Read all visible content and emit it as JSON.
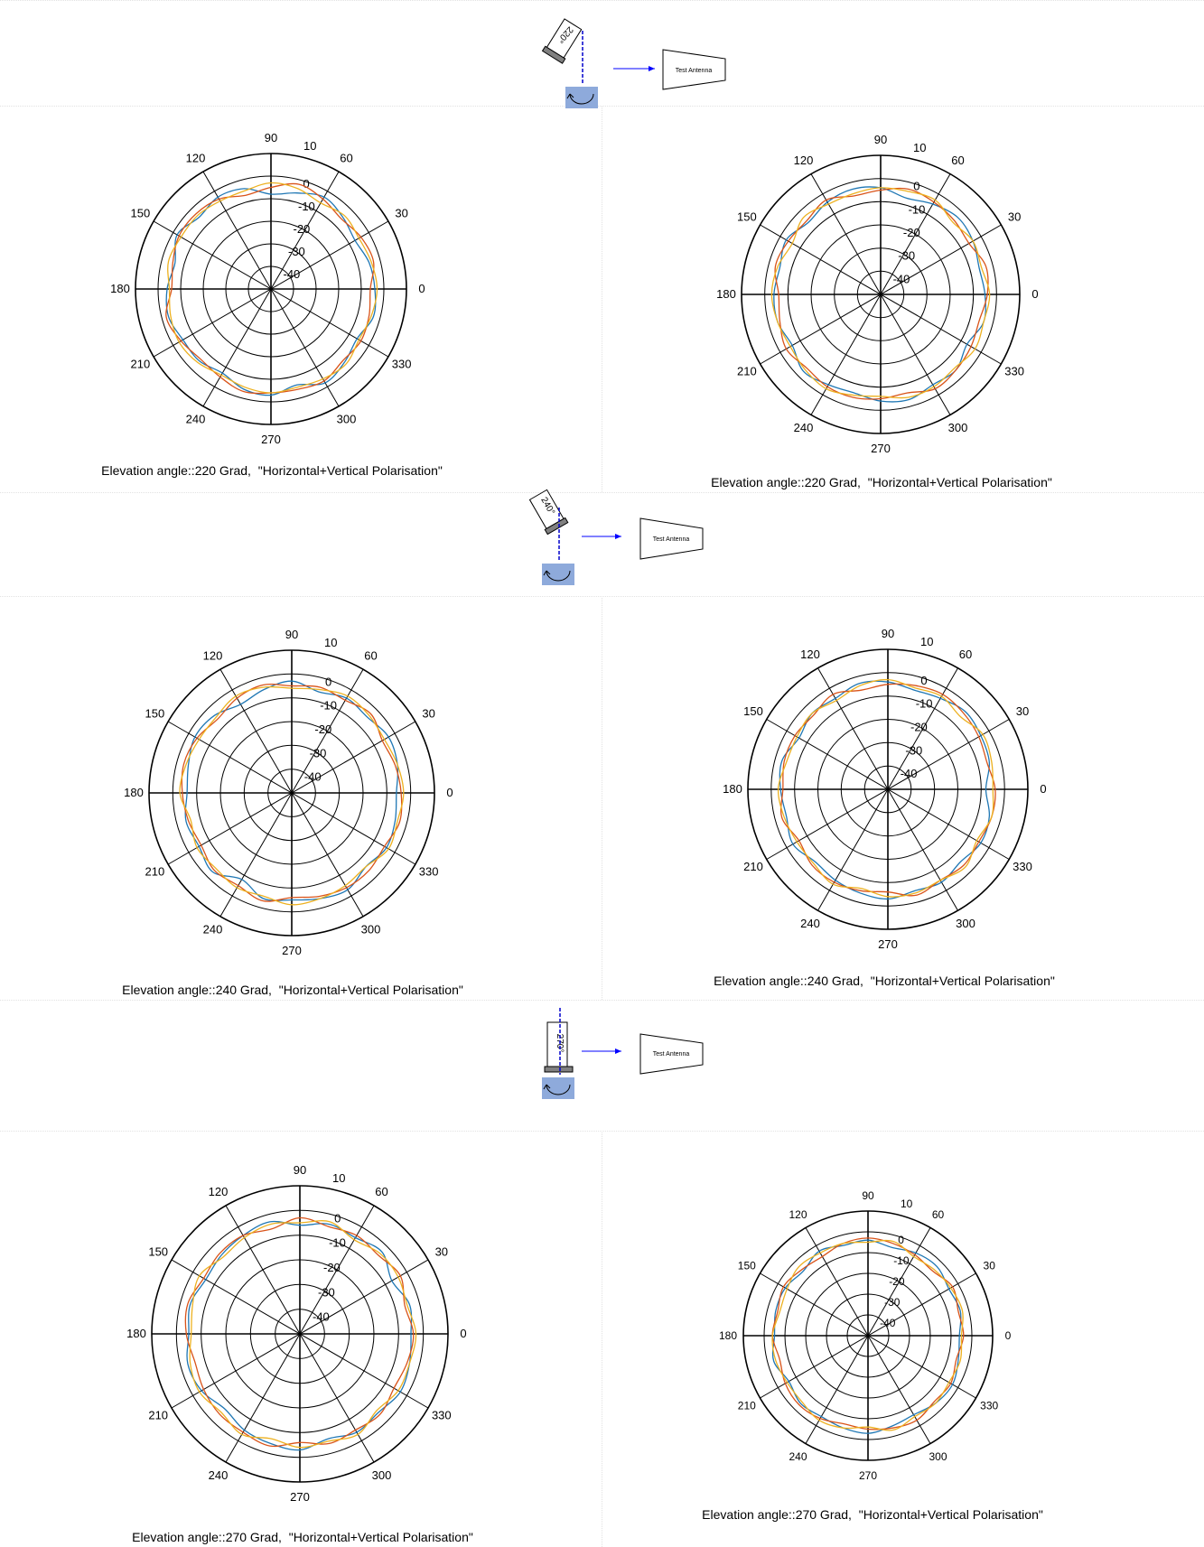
{
  "setups": [
    {
      "angle_label": "220°",
      "antenna_label": "Test Antenna"
    },
    {
      "angle_label": "240°",
      "antenna_label": "Test Antenna"
    },
    {
      "angle_label": "270°",
      "antenna_label": "Test Antenna"
    }
  ],
  "colors": {
    "series": [
      "#1f77b4",
      "#d95319",
      "#edb120"
    ]
  },
  "chart_data": [
    {
      "type": "polar",
      "caption": "Elevation angle::220 Grad,  \"Horizontal+Vertical Polarisation\"",
      "angle_ticks": [
        "0",
        "30",
        "60",
        "90",
        "120",
        "150",
        "180",
        "210",
        "240",
        "270",
        "300",
        "330"
      ],
      "radial_ticks": [
        "10",
        "0",
        "-10",
        "-20",
        "-30",
        "-40"
      ],
      "rlim": [
        -50,
        10
      ],
      "series": [
        {
          "values": [
            -4,
            -5,
            -7,
            -5,
            -3,
            -6,
            -8,
            -4,
            -3,
            -5,
            -2,
            -6,
            -4,
            -3,
            -5,
            -5,
            -7,
            -4,
            -3,
            -6,
            -2,
            -4,
            -6,
            -3
          ]
        },
        {
          "values": [
            -6,
            -3,
            -4,
            -6,
            -4,
            -2,
            -5,
            -7,
            -4,
            -3,
            -3,
            -5,
            -6,
            -2,
            -4,
            -6,
            -5,
            -3,
            -4,
            -4,
            -3,
            -5,
            -4,
            -5
          ]
        },
        {
          "values": [
            -3,
            -4,
            -5,
            -4,
            -6,
            -4,
            -3,
            -5,
            -5,
            -4,
            -4,
            -3,
            -5,
            -4,
            -3,
            -4,
            -6,
            -5,
            -4,
            -5,
            -4,
            -3,
            -5,
            -4
          ]
        }
      ]
    },
    {
      "type": "polar",
      "caption": "Elevation angle::220 Grad,  \"Horizontal+Vertical Polarisation\"",
      "angle_ticks": [
        "0",
        "30",
        "60",
        "90",
        "120",
        "150",
        "180",
        "210",
        "240",
        "270",
        "300",
        "330"
      ],
      "radial_ticks": [
        "10",
        "0",
        "-10",
        "-20",
        "-30",
        "-40"
      ],
      "rlim": [
        -50,
        10
      ],
      "series": [
        {
          "values": [
            -5,
            -6,
            -4,
            -3,
            -5,
            -7,
            -4,
            -3,
            -4,
            -6,
            -3,
            -5,
            -4,
            -4,
            -6,
            -3,
            -5,
            -6,
            -4,
            -3,
            -5,
            -4,
            -7,
            -4
          ]
        },
        {
          "values": [
            -4,
            -3,
            -6,
            -5,
            -4,
            -3,
            -5,
            -6,
            -3,
            -5,
            -4,
            -3,
            -6,
            -5,
            -3,
            -5,
            -4,
            -4,
            -5,
            -6,
            -3,
            -4,
            -5,
            -6
          ]
        },
        {
          "values": [
            -3,
            -5,
            -4,
            -6,
            -3,
            -4,
            -4,
            -5,
            -5,
            -3,
            -6,
            -4,
            -3,
            -4,
            -5,
            -4,
            -3,
            -5,
            -6,
            -4,
            -4,
            -5,
            -3,
            -4
          ]
        }
      ]
    },
    {
      "type": "polar",
      "caption": "Elevation angle::240 Grad,  \"Horizontal+Vertical Polarisation\"",
      "angle_ticks": [
        "0",
        "30",
        "60",
        "90",
        "120",
        "150",
        "180",
        "210",
        "240",
        "270",
        "300",
        "330"
      ],
      "radial_ticks": [
        "10",
        "0",
        "-10",
        "-20",
        "-30",
        "-40"
      ],
      "rlim": [
        -50,
        10
      ],
      "series": [
        {
          "values": [
            -6,
            -4,
            -3,
            -5,
            -4,
            -6,
            -3,
            -5,
            -7,
            -4,
            -3,
            -5,
            -6,
            -4,
            -5,
            -3,
            -8,
            -4,
            -5,
            -4,
            -3,
            -6,
            -4,
            -5
          ]
        },
        {
          "values": [
            -4,
            -5,
            -6,
            -3,
            -5,
            -4,
            -5,
            -3,
            -4,
            -6,
            -4,
            -3,
            -4,
            -5,
            -6,
            -4,
            -5,
            -3,
            -6,
            -5,
            -4,
            -4,
            -5,
            -3
          ]
        },
        {
          "values": [
            -3,
            -4,
            -5,
            -4,
            -3,
            -5,
            -6,
            -4,
            -3,
            -5,
            -5,
            -4,
            -3,
            -6,
            -4,
            -5,
            -4,
            -5,
            -3,
            -4,
            -5,
            -6,
            -3,
            -4
          ]
        }
      ]
    },
    {
      "type": "polar",
      "caption": "Elevation angle::240 Grad,  \"Horizontal+Vertical Polarisation\"",
      "angle_ticks": [
        "0",
        "30",
        "60",
        "90",
        "120",
        "150",
        "180",
        "210",
        "240",
        "270",
        "300",
        "330"
      ],
      "radial_ticks": [
        "10",
        "0",
        "-10",
        "-20",
        "-30",
        "-40"
      ],
      "rlim": [
        -50,
        10
      ],
      "series": [
        {
          "values": [
            -8,
            -5,
            -4,
            -3,
            -5,
            -6,
            -4,
            -3,
            -5,
            -4,
            -6,
            -3,
            -4,
            -5,
            -3,
            -6,
            -5,
            -4,
            -3,
            -5,
            -4,
            -6,
            -4,
            -5
          ]
        },
        {
          "values": [
            -4,
            -6,
            -5,
            -4,
            -3,
            -4,
            -5,
            -6,
            -3,
            -5,
            -4,
            -4,
            -5,
            -3,
            -6,
            -4,
            -4,
            -5,
            -6,
            -3,
            -5,
            -4,
            -5,
            -4
          ]
        },
        {
          "values": [
            -5,
            -4,
            -3,
            -6,
            -4,
            -5,
            -3,
            -4,
            -6,
            -4,
            -5,
            -5,
            -3,
            -4,
            -5,
            -5,
            -3,
            -6,
            -4,
            -4,
            -5,
            -3,
            -6,
            -4
          ]
        }
      ]
    },
    {
      "type": "polar",
      "caption": "Elevation angle::270 Grad,  \"Horizontal+Vertical Polarisation\"",
      "angle_ticks": [
        "0",
        "30",
        "60",
        "90",
        "120",
        "150",
        "180",
        "210",
        "240",
        "270",
        "300",
        "330"
      ],
      "radial_ticks": [
        "10",
        "0",
        "-10",
        "-20",
        "-30",
        "-40"
      ],
      "rlim": [
        -50,
        10
      ],
      "series": [
        {
          "values": [
            -5,
            -4,
            -7,
            -3,
            -5,
            -4,
            -6,
            -3,
            -4,
            -5,
            -6,
            -4,
            -5,
            -3,
            -4,
            -7,
            -5,
            -4,
            -3,
            -6,
            -4,
            -5,
            -3,
            -4
          ]
        },
        {
          "values": [
            -4,
            -6,
            -3,
            -5,
            -4,
            -5,
            -3,
            -6,
            -4,
            -4,
            -5,
            -3,
            -4,
            -6,
            -5,
            -4,
            -4,
            -3,
            -6,
            -4,
            -5,
            -4,
            -6,
            -5
          ]
        },
        {
          "values": [
            -3,
            -5,
            -4,
            -4,
            -6,
            -3,
            -5,
            -4,
            -5,
            -6,
            -3,
            -5,
            -6,
            -4,
            -3,
            -5,
            -3,
            -6,
            -4,
            -5,
            -3,
            -6,
            -4,
            -4
          ]
        }
      ]
    },
    {
      "type": "polar",
      "caption": "Elevation angle::270 Grad,  \"Horizontal+Vertical Polarisation\"",
      "angle_ticks": [
        "0",
        "30",
        "60",
        "90",
        "120",
        "150",
        "180",
        "210",
        "240",
        "270",
        "300",
        "330"
      ],
      "radial_ticks": [
        "10",
        "0",
        "-10",
        "-20",
        "-30",
        "-40"
      ],
      "rlim": [
        -50,
        10
      ],
      "series": [
        {
          "values": [
            -6,
            -4,
            -5,
            -3,
            -4,
            -6,
            -4,
            -5,
            -3,
            -6,
            -4,
            -4,
            -5,
            -3,
            -6,
            -4,
            -5,
            -4,
            -3,
            -5,
            -6,
            -4,
            -3,
            -5
          ]
        },
        {
          "values": [
            -4,
            -5,
            -3,
            -6,
            -5,
            -4,
            -3,
            -4,
            -6,
            -5,
            -3,
            -5,
            -4,
            -6,
            -4,
            -3,
            -4,
            -6,
            -5,
            -4,
            -3,
            -5,
            -4,
            -6
          ]
        },
        {
          "values": [
            -5,
            -3,
            -4,
            -5,
            -6,
            -3,
            -5,
            -4,
            -4,
            -3,
            -5,
            -6,
            -4,
            -4,
            -5,
            -5,
            -3,
            -4,
            -6,
            -3,
            -5,
            -4,
            -5,
            -4
          ]
        }
      ]
    }
  ]
}
